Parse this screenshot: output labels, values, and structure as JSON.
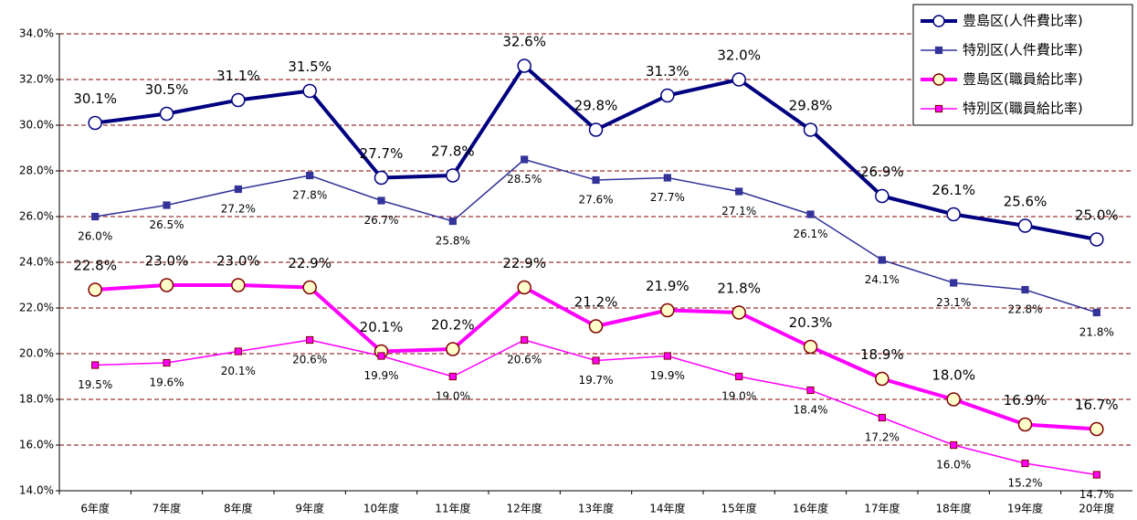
{
  "chart_data": {
    "type": "line",
    "categories": [
      "6年度",
      "7年度",
      "8年度",
      "9年度",
      "10年度",
      "11年度",
      "12年度",
      "13年度",
      "14年度",
      "15年度",
      "16年度",
      "17年度",
      "18年度",
      "19年度",
      "20年度"
    ],
    "series": [
      {
        "name": "豊島区(人件費比率)",
        "color": "#000080",
        "marker": "circle",
        "marker_fill": "#ffffff",
        "marker_stroke": "#000080",
        "line_width": 4,
        "label_position": "above",
        "values": [
          30.1,
          30.5,
          31.1,
          31.5,
          27.7,
          27.8,
          32.6,
          29.8,
          31.3,
          32.0,
          29.8,
          26.9,
          26.1,
          25.6,
          25.0
        ],
        "value_labels": [
          "30.1%",
          "30.5%",
          "31.1%",
          "31.5%",
          "27.7%",
          "27.8%",
          "32.6%",
          "29.8%",
          "31.3%",
          "32.0%",
          "29.8%",
          "26.9%",
          "26.1%",
          "25.6%",
          "25.0%"
        ]
      },
      {
        "name": "特別区(人件費比率)",
        "color": "#333399",
        "marker": "square",
        "marker_fill": "#333399",
        "marker_stroke": "#333399",
        "line_width": 1.5,
        "label_position": "below",
        "values": [
          26.0,
          26.5,
          27.2,
          27.8,
          26.7,
          25.8,
          28.5,
          27.6,
          27.7,
          27.1,
          26.1,
          24.1,
          23.1,
          22.8,
          21.8
        ],
        "value_labels": [
          "26.0%",
          "26.5%",
          "27.2%",
          "27.8%",
          "26.7%",
          "25.8%",
          "28.5%",
          "27.6%",
          "27.7%",
          "27.1%",
          "26.1%",
          "24.1%",
          "23.1%",
          "22.8%",
          "21.8%"
        ]
      },
      {
        "name": "豊島区(職員給比率)",
        "color": "#ff00ff",
        "marker": "circle",
        "marker_fill": "#ffffcc",
        "marker_stroke": "#800000",
        "line_width": 4,
        "label_position": "above",
        "values": [
          22.8,
          23.0,
          23.0,
          22.9,
          20.1,
          20.2,
          22.9,
          21.2,
          21.9,
          21.8,
          20.3,
          18.9,
          18.0,
          16.9,
          16.7
        ],
        "value_labels": [
          "22.8%",
          "23.0%",
          "23.0%",
          "22.9%",
          "20.1%",
          "20.2%",
          "22.9%",
          "21.2%",
          "21.9%",
          "21.8%",
          "20.3%",
          "18.9%",
          "18.0%",
          "16.9%",
          "16.7%"
        ]
      },
      {
        "name": "特別区(職員給比率)",
        "color": "#ff00ff",
        "marker": "square",
        "marker_fill": "#ff00ff",
        "marker_stroke": "#800000",
        "line_width": 1.5,
        "label_position": "below",
        "values": [
          19.5,
          19.6,
          20.1,
          20.6,
          19.9,
          19.0,
          20.6,
          19.7,
          19.9,
          19.0,
          18.4,
          17.2,
          16.0,
          15.2,
          14.7
        ],
        "value_labels": [
          "19.5%",
          "19.6%",
          "20.1%",
          "20.6%",
          "19.9%",
          "19.0%",
          "20.6%",
          "19.7%",
          "19.9%",
          "19.0%",
          "18.4%",
          "17.2%",
          "16.0%",
          "15.2%",
          "14.7%"
        ]
      }
    ],
    "ylim": [
      14,
      34
    ],
    "yticks": [
      {
        "value": 14,
        "label": "14.0%"
      },
      {
        "value": 16,
        "label": "16.0%"
      },
      {
        "value": 18,
        "label": "18.0%"
      },
      {
        "value": 20,
        "label": "20.0%"
      },
      {
        "value": 22,
        "label": "22.0%"
      },
      {
        "value": 24,
        "label": "24.0%"
      },
      {
        "value": 26,
        "label": "26.0%"
      },
      {
        "value": 28,
        "label": "28.0%"
      },
      {
        "value": 30,
        "label": "30.0%"
      },
      {
        "value": 32,
        "label": "32.0%"
      },
      {
        "value": 34,
        "label": "34.0%"
      }
    ],
    "grid": true,
    "grid_color": "#800000",
    "legend": "upper right"
  }
}
